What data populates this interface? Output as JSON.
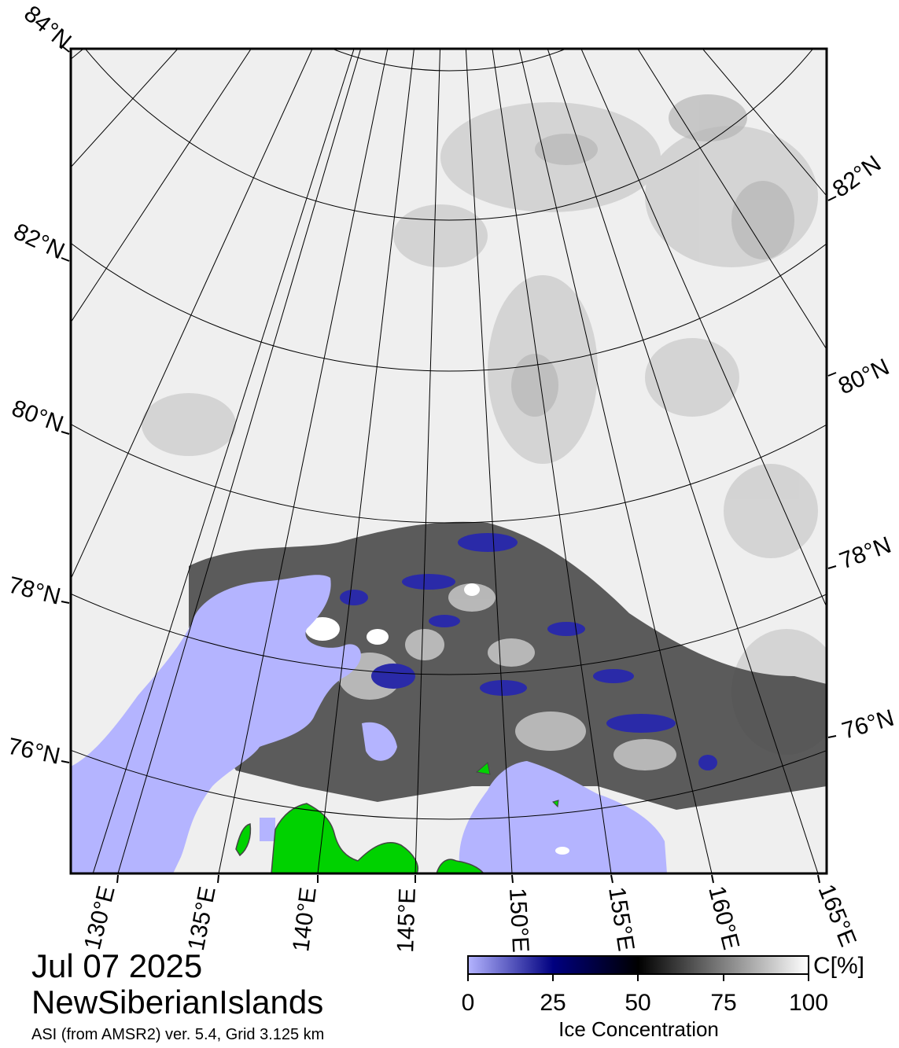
{
  "header": {
    "date": "Jul 07 2025",
    "region": "NewSiberianIslands",
    "source": "ASI (from AMSR2) ver. 5.4,  Grid 3.125 km"
  },
  "map": {
    "projection": "polar stereographic (north)",
    "latitude_labels": [
      "84°N",
      "82°N",
      "80°N",
      "78°N",
      "76°N",
      "82°N",
      "80°N",
      "78°N",
      "76°N"
    ],
    "longitude_labels": [
      "130°E",
      "135°E",
      "140°E",
      "145°E",
      "150°E",
      "155°E",
      "160°E",
      "165°E"
    ],
    "colors": {
      "open_water": "#b4b4ff",
      "land": "#00d200",
      "coastline": "#444444",
      "graticule": "#000000"
    }
  },
  "colorbar": {
    "title": "Ice Concentration",
    "unit": "C[%]",
    "ticks": [
      "0",
      "25",
      "50",
      "75",
      "100"
    ],
    "stops": [
      {
        "value": 0,
        "color": "#b4b4ff"
      },
      {
        "value": 25,
        "color": "#000080"
      },
      {
        "value": 50,
        "color": "#000000"
      },
      {
        "value": 100,
        "color": "#ffffff"
      }
    ]
  }
}
